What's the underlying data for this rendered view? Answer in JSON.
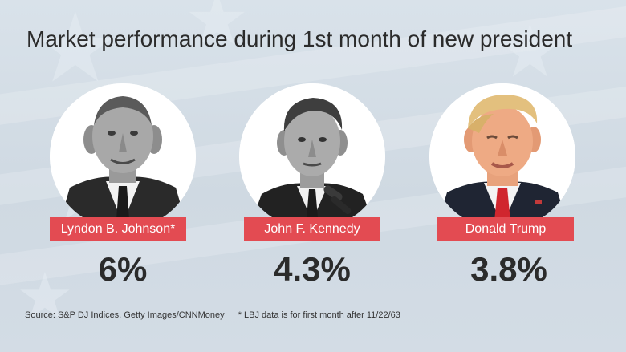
{
  "title": "Market performance during 1st month of new president",
  "presidents": [
    {
      "name": "Lyndon B. Johnson*",
      "value": "6%",
      "portrait": "lyndon-b-johnson-portrait"
    },
    {
      "name": "John F. Kennedy",
      "value": "4.3%",
      "portrait": "john-f-kennedy-portrait"
    },
    {
      "name": "Donald Trump",
      "value": "3.8%",
      "portrait": "donald-trump-portrait"
    }
  ],
  "footer": {
    "source": "Source: S&P DJ Indices, Getty Images/CNNMoney",
    "note": "* LBJ data is for first month after 11/22/63"
  },
  "colors": {
    "banner": "#e34b52",
    "background": "#d9e2ea",
    "text": "#2b2b2b"
  }
}
